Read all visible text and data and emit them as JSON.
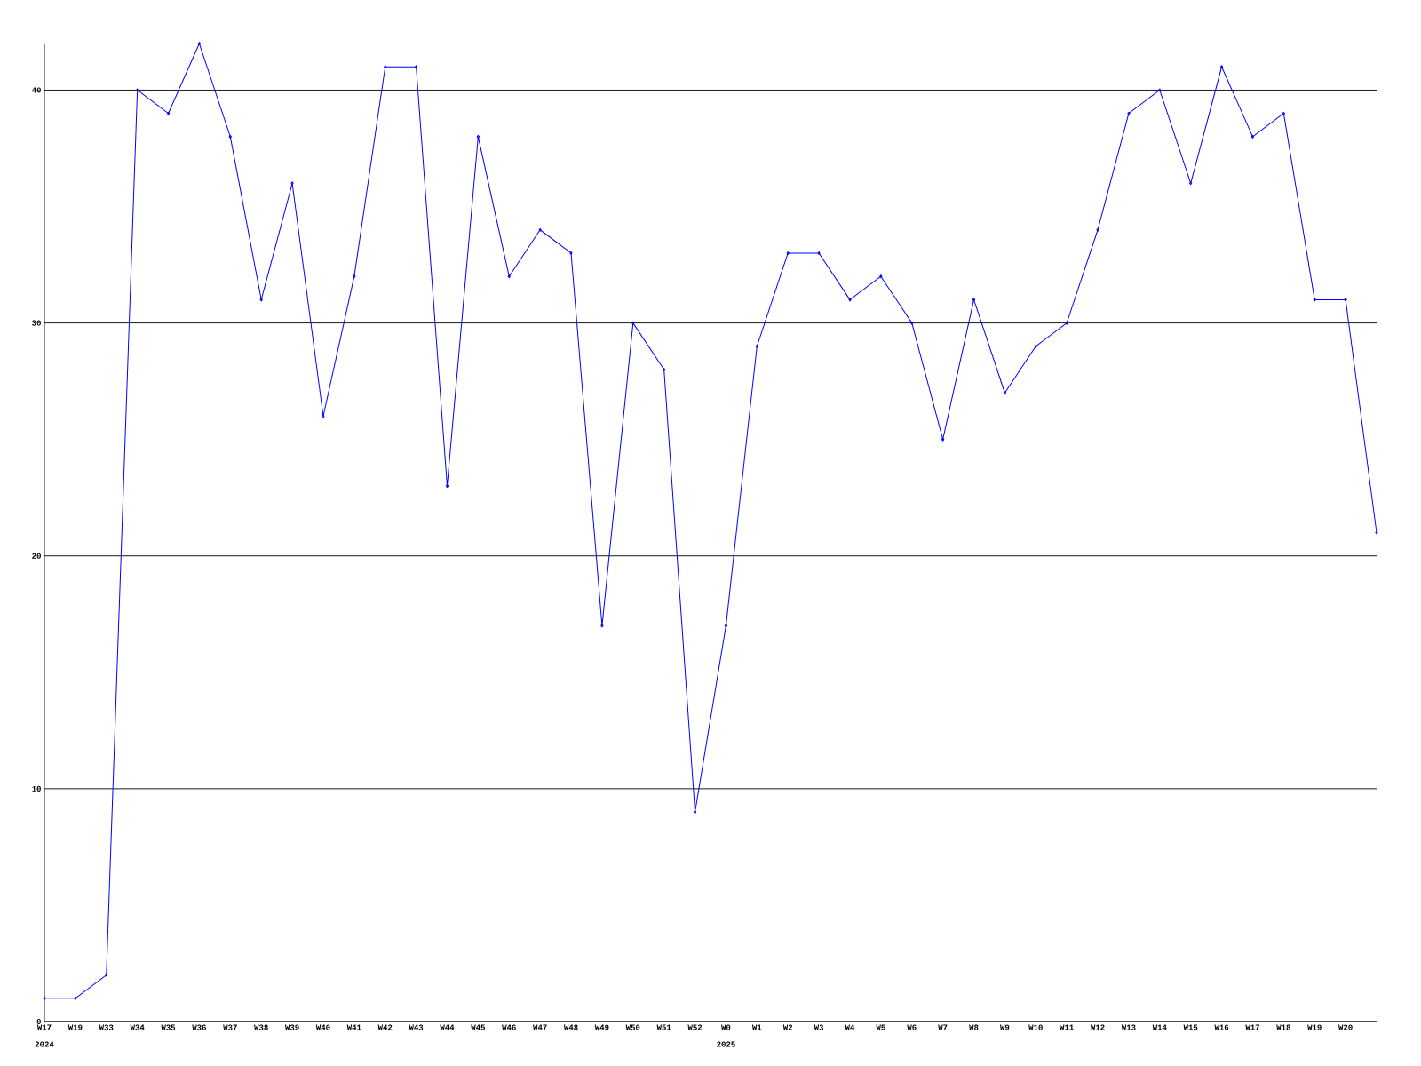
{
  "chart_data": {
    "type": "line",
    "categories": [
      "W17",
      "W19",
      "W33",
      "W34",
      "W35",
      "W36",
      "W37",
      "W38",
      "W39",
      "W40",
      "W41",
      "W42",
      "W43",
      "W44",
      "W45",
      "W46",
      "W47",
      "W48",
      "W49",
      "W50",
      "W51",
      "W52",
      "W0",
      "W1",
      "W2",
      "W3",
      "W4",
      "W5",
      "W6",
      "W7",
      "W8",
      "W9",
      "W10",
      "W11",
      "W12",
      "W13",
      "W14",
      "W15",
      "W16",
      "W17",
      "W18",
      "W19",
      "W20",
      null
    ],
    "values": [
      1,
      1,
      2,
      40,
      39,
      42,
      38,
      31,
      36,
      26,
      32,
      41,
      41,
      23,
      38,
      32,
      34,
      33,
      17,
      30,
      28,
      9,
      17,
      29,
      33,
      33,
      31,
      32,
      30,
      25,
      31,
      27,
      29,
      30,
      34,
      39,
      40,
      36,
      41,
      38,
      39,
      31,
      31,
      21
    ],
    "color": "#0000ff",
    "ylim": [
      0,
      42
    ],
    "yticks": [
      0,
      10,
      20,
      30,
      40
    ],
    "grid": "y",
    "marker": "diamond",
    "annotations": [
      "2024",
      "2025"
    ]
  }
}
